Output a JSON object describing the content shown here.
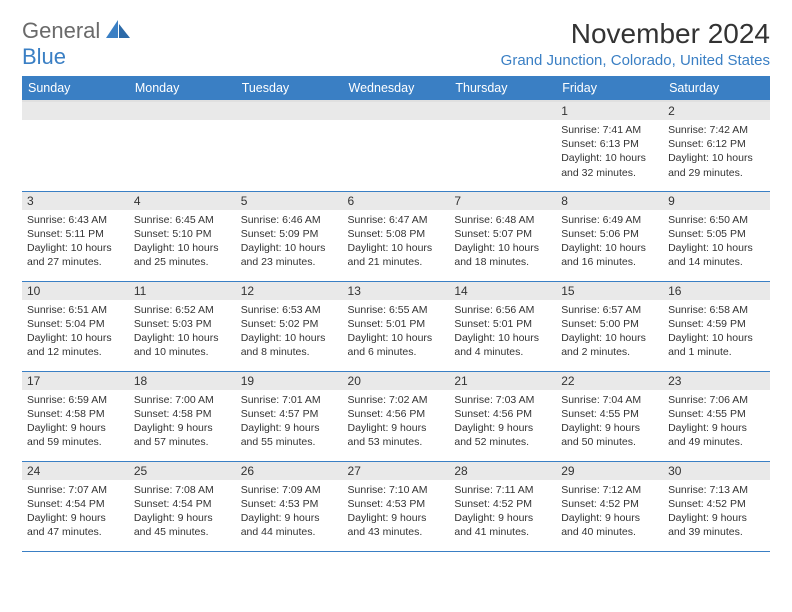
{
  "logo": {
    "word1": "General",
    "word2": "Blue"
  },
  "title": "November 2024",
  "location": "Grand Junction, Colorado, United States",
  "colors": {
    "brand_blue": "#3a7fc4",
    "logo_gray": "#6a6a6a",
    "text": "#333333",
    "header_row_bg": "#3a7fc4",
    "daynum_bg": "#e9e9e9",
    "cell_border": "#3a7fc4",
    "background": "#ffffff"
  },
  "typography": {
    "title_fontsize": 28,
    "location_fontsize": 15,
    "header_fontsize": 12.5,
    "daynum_fontsize": 12,
    "body_fontsize": 10.5
  },
  "weekdays": [
    "Sunday",
    "Monday",
    "Tuesday",
    "Wednesday",
    "Thursday",
    "Friday",
    "Saturday"
  ],
  "grid": {
    "cols": 7,
    "rows": 5,
    "first_weekday_index": 5,
    "days_in_month": 30
  },
  "days": {
    "1": {
      "sunrise": "7:41 AM",
      "sunset": "6:13 PM",
      "daylight": "10 hours and 32 minutes."
    },
    "2": {
      "sunrise": "7:42 AM",
      "sunset": "6:12 PM",
      "daylight": "10 hours and 29 minutes."
    },
    "3": {
      "sunrise": "6:43 AM",
      "sunset": "5:11 PM",
      "daylight": "10 hours and 27 minutes."
    },
    "4": {
      "sunrise": "6:45 AM",
      "sunset": "5:10 PM",
      "daylight": "10 hours and 25 minutes."
    },
    "5": {
      "sunrise": "6:46 AM",
      "sunset": "5:09 PM",
      "daylight": "10 hours and 23 minutes."
    },
    "6": {
      "sunrise": "6:47 AM",
      "sunset": "5:08 PM",
      "daylight": "10 hours and 21 minutes."
    },
    "7": {
      "sunrise": "6:48 AM",
      "sunset": "5:07 PM",
      "daylight": "10 hours and 18 minutes."
    },
    "8": {
      "sunrise": "6:49 AM",
      "sunset": "5:06 PM",
      "daylight": "10 hours and 16 minutes."
    },
    "9": {
      "sunrise": "6:50 AM",
      "sunset": "5:05 PM",
      "daylight": "10 hours and 14 minutes."
    },
    "10": {
      "sunrise": "6:51 AM",
      "sunset": "5:04 PM",
      "daylight": "10 hours and 12 minutes."
    },
    "11": {
      "sunrise": "6:52 AM",
      "sunset": "5:03 PM",
      "daylight": "10 hours and 10 minutes."
    },
    "12": {
      "sunrise": "6:53 AM",
      "sunset": "5:02 PM",
      "daylight": "10 hours and 8 minutes."
    },
    "13": {
      "sunrise": "6:55 AM",
      "sunset": "5:01 PM",
      "daylight": "10 hours and 6 minutes."
    },
    "14": {
      "sunrise": "6:56 AM",
      "sunset": "5:01 PM",
      "daylight": "10 hours and 4 minutes."
    },
    "15": {
      "sunrise": "6:57 AM",
      "sunset": "5:00 PM",
      "daylight": "10 hours and 2 minutes."
    },
    "16": {
      "sunrise": "6:58 AM",
      "sunset": "4:59 PM",
      "daylight": "10 hours and 1 minute."
    },
    "17": {
      "sunrise": "6:59 AM",
      "sunset": "4:58 PM",
      "daylight": "9 hours and 59 minutes."
    },
    "18": {
      "sunrise": "7:00 AM",
      "sunset": "4:58 PM",
      "daylight": "9 hours and 57 minutes."
    },
    "19": {
      "sunrise": "7:01 AM",
      "sunset": "4:57 PM",
      "daylight": "9 hours and 55 minutes."
    },
    "20": {
      "sunrise": "7:02 AM",
      "sunset": "4:56 PM",
      "daylight": "9 hours and 53 minutes."
    },
    "21": {
      "sunrise": "7:03 AM",
      "sunset": "4:56 PM",
      "daylight": "9 hours and 52 minutes."
    },
    "22": {
      "sunrise": "7:04 AM",
      "sunset": "4:55 PM",
      "daylight": "9 hours and 50 minutes."
    },
    "23": {
      "sunrise": "7:06 AM",
      "sunset": "4:55 PM",
      "daylight": "9 hours and 49 minutes."
    },
    "24": {
      "sunrise": "7:07 AM",
      "sunset": "4:54 PM",
      "daylight": "9 hours and 47 minutes."
    },
    "25": {
      "sunrise": "7:08 AM",
      "sunset": "4:54 PM",
      "daylight": "9 hours and 45 minutes."
    },
    "26": {
      "sunrise": "7:09 AM",
      "sunset": "4:53 PM",
      "daylight": "9 hours and 44 minutes."
    },
    "27": {
      "sunrise": "7:10 AM",
      "sunset": "4:53 PM",
      "daylight": "9 hours and 43 minutes."
    },
    "28": {
      "sunrise": "7:11 AM",
      "sunset": "4:52 PM",
      "daylight": "9 hours and 41 minutes."
    },
    "29": {
      "sunrise": "7:12 AM",
      "sunset": "4:52 PM",
      "daylight": "9 hours and 40 minutes."
    },
    "30": {
      "sunrise": "7:13 AM",
      "sunset": "4:52 PM",
      "daylight": "9 hours and 39 minutes."
    }
  },
  "labels": {
    "sunrise": "Sunrise: ",
    "sunset": "Sunset: ",
    "daylight": "Daylight: "
  }
}
